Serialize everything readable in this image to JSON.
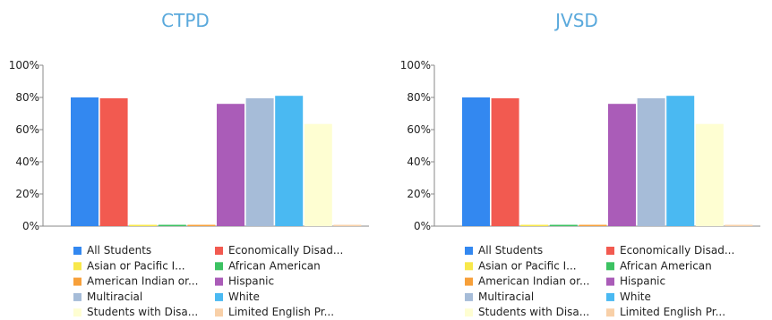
{
  "chart_data": [
    {
      "type": "bar",
      "title": "CTPD",
      "xlabel": "",
      "ylabel": "",
      "ylim": [
        0,
        100
      ],
      "yticks": [
        "0%",
        "20%",
        "40%",
        "60%",
        "80%",
        "100%"
      ],
      "grid": false,
      "legend_position": "bottom",
      "series": [
        {
          "name": "All Students",
          "value": 80,
          "color": "#3388f0"
        },
        {
          "name": "Economically Disad...",
          "value": 79.5,
          "color": "#f25a50"
        },
        {
          "name": "Asian or Pacific I...",
          "value": 0,
          "color": "#f8e84a"
        },
        {
          "name": "African American",
          "value": 0,
          "color": "#3cc262"
        },
        {
          "name": "American Indian or...",
          "value": 0,
          "color": "#f7a03a"
        },
        {
          "name": "Hispanic",
          "value": 76,
          "color": "#aa5cb8"
        },
        {
          "name": "Multiracial",
          "value": 79.5,
          "color": "#a6bcd8"
        },
        {
          "name": "White",
          "value": 81,
          "color": "#4ab9f2"
        },
        {
          "name": "Students with Disa...",
          "value": 63.5,
          "color": "#fefed2"
        },
        {
          "name": "Limited English Pr...",
          "value": 0,
          "color": "#f8d0a8"
        }
      ]
    },
    {
      "type": "bar",
      "title": "JVSD",
      "xlabel": "",
      "ylabel": "",
      "ylim": [
        0,
        100
      ],
      "yticks": [
        "0%",
        "20%",
        "40%",
        "60%",
        "80%",
        "100%"
      ],
      "grid": false,
      "legend_position": "bottom",
      "series": [
        {
          "name": "All Students",
          "value": 80,
          "color": "#3388f0"
        },
        {
          "name": "Economically Disad...",
          "value": 79.5,
          "color": "#f25a50"
        },
        {
          "name": "Asian or Pacific I...",
          "value": 0,
          "color": "#f8e84a"
        },
        {
          "name": "African American",
          "value": 0,
          "color": "#3cc262"
        },
        {
          "name": "American Indian or...",
          "value": 0,
          "color": "#f7a03a"
        },
        {
          "name": "Hispanic",
          "value": 76,
          "color": "#aa5cb8"
        },
        {
          "name": "Multiracial",
          "value": 79.5,
          "color": "#a6bcd8"
        },
        {
          "name": "White",
          "value": 81,
          "color": "#4ab9f2"
        },
        {
          "name": "Students with Disa...",
          "value": 63.5,
          "color": "#fefed2"
        },
        {
          "name": "Limited English Pr...",
          "value": 0,
          "color": "#f8d0a8"
        }
      ]
    }
  ]
}
